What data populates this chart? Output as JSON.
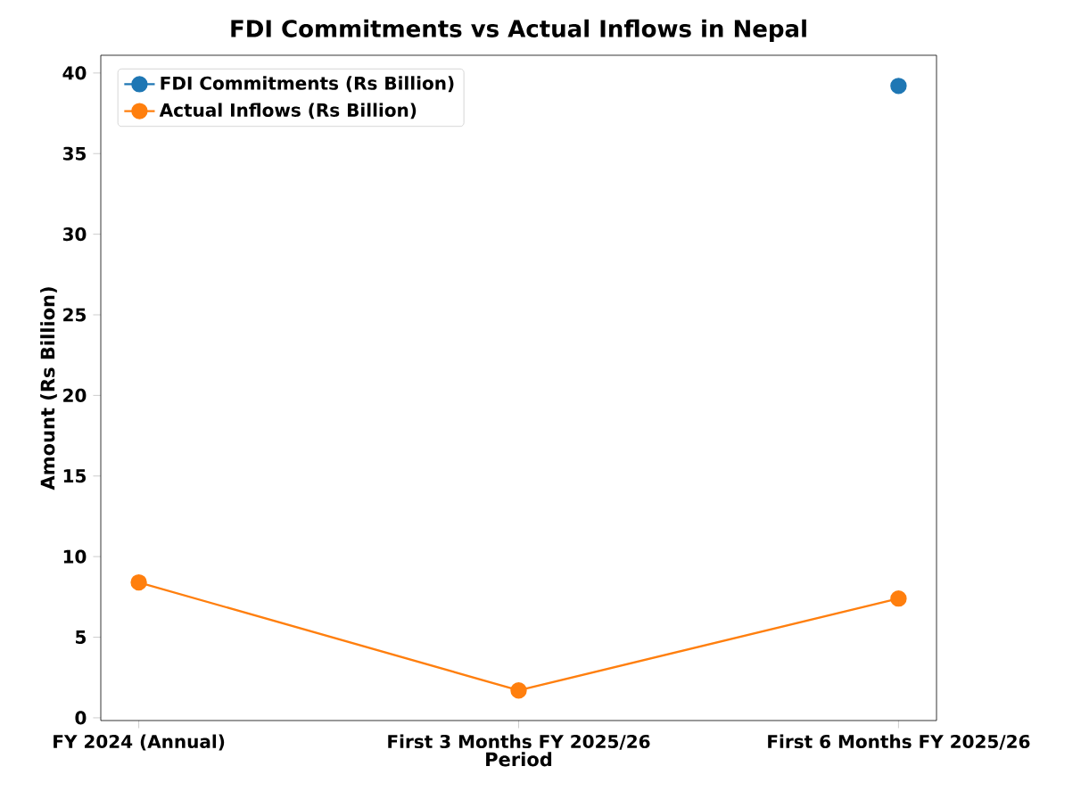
{
  "chart_data": {
    "type": "line",
    "title": "FDI Commitments vs Actual Inflows in Nepal",
    "xlabel": "Period",
    "ylabel": "Amount (Rs Billion)",
    "categories": [
      "FY 2024 (Annual)",
      "First 3 Months FY 2025/26",
      "First 6 Months FY 2025/26"
    ],
    "series": [
      {
        "name": "FDI Commitments (Rs Billion)",
        "color": "#1f77b4",
        "values": [
          null,
          null,
          39.2
        ]
      },
      {
        "name": "Actual Inflows (Rs Billion)",
        "color": "#ff7f0e",
        "values": [
          8.4,
          1.7,
          7.4
        ]
      }
    ],
    "ylim": [
      -0.17,
      41.1
    ],
    "yticks": [
      0,
      5,
      10,
      15,
      20,
      25,
      30,
      35,
      40
    ],
    "legend": "top left",
    "marker": "circle",
    "line_style": "solid",
    "grid": false
  }
}
